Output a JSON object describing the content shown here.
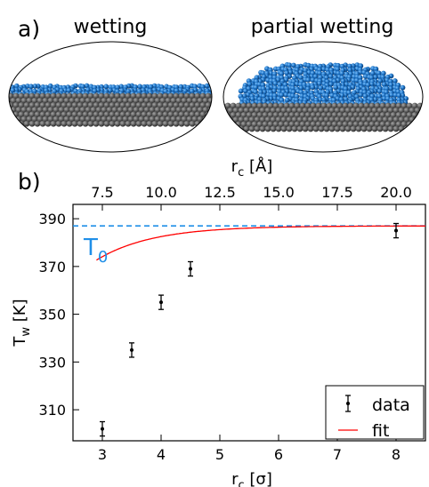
{
  "panel_a": {
    "letter": "a)",
    "left_title": "wetting",
    "right_title": "partial wetting"
  },
  "chart_data": {
    "panel_letter": "b)",
    "type": "scatter",
    "xlabel": "r",
    "xlabel_sub": "c",
    "xlabel_unit": " [σ]",
    "ylabel": "T",
    "ylabel_sub": "w",
    "ylabel_unit": " [K]",
    "top_xlabel": "r",
    "top_xlabel_sub": "c",
    "top_xlabel_unit": " [Å]",
    "xlim": [
      2.5,
      8.5
    ],
    "ylim": [
      297,
      396
    ],
    "xticks": [
      3,
      4,
      5,
      6,
      7,
      8
    ],
    "yticks": [
      310,
      330,
      350,
      370,
      390
    ],
    "top_xticks": [
      7.5,
      10.0,
      12.5,
      15.0,
      17.5,
      20.0
    ],
    "top_axis_scale_angstrom_per_sigma": 2.5,
    "grid": false,
    "legend_position": "bottom-right",
    "series": [
      {
        "name": "data",
        "style": "errorbar",
        "color": "#000000",
        "x": [
          3.0,
          3.5,
          4.0,
          4.5,
          8.0
        ],
        "y": [
          302,
          335,
          355,
          369,
          385
        ],
        "yerr": [
          3,
          3,
          3,
          3,
          3
        ]
      },
      {
        "name": "fit",
        "style": "line",
        "color": "#ff0000",
        "T0": 387,
        "a": 1.056,
        "b": 1.06,
        "x_start": 2.9,
        "x_end": 8.5
      }
    ],
    "reference_line": {
      "label": "T",
      "label_sub": "0",
      "y": 387,
      "color": "#1f8fe8",
      "style": "dashed"
    }
  },
  "colors": {
    "droplet": "#1a6fc2",
    "substrate": "#5a5a5a"
  }
}
